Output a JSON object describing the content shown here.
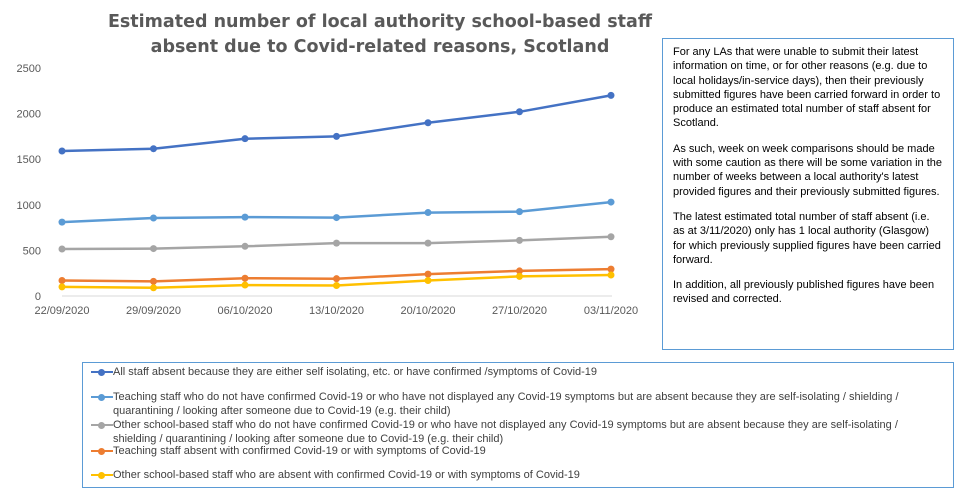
{
  "chart_data": {
    "type": "line",
    "title": "Estimated number of local authority school-based staff absent due to Covid-related reasons, Scotland",
    "categories": [
      "22/09/2020",
      "29/09/2020",
      "06/10/2020",
      "13/10/2020",
      "20/10/2020",
      "27/10/2020",
      "03/11/2020"
    ],
    "y_ticks": [
      "0",
      "500",
      "1000",
      "1500",
      "2000",
      "2500"
    ],
    "ylim": [
      0,
      2500
    ],
    "grid": false,
    "legend_position": "bottom",
    "series": [
      {
        "name": "All staff absent because they are either self isolating, etc. or have confirmed /symptoms of Covid-19",
        "color": "#4472c4",
        "values": [
          1590,
          1615,
          1725,
          1750,
          1900,
          2020,
          2200
        ]
      },
      {
        "name": "Teaching staff who do not have confirmed Covid-19 or who have not displayed any Covid-19 symptoms but are absent because they are self-isolating / shielding / quarantining / looking after someone due to Covid-19 (e.g. their child)",
        "color": "#5b9bd5",
        "values": [
          810,
          855,
          865,
          860,
          915,
          925,
          1030
        ]
      },
      {
        "name": "Other school-based staff who do not have confirmed Covid-19 or who have not displayed any Covid-19 symptoms but are absent because they are self-isolating / shielding / quarantining / looking after someone due to Covid-19 (e.g. their child)",
        "color": "#a5a5a5",
        "values": [
          515,
          520,
          545,
          580,
          580,
          610,
          650
        ]
      },
      {
        "name": "Teaching staff absent with confirmed Covid-19 or with symptoms of Covid-19",
        "color": "#ed7d31",
        "values": [
          170,
          160,
          195,
          190,
          240,
          275,
          295
        ]
      },
      {
        "name": "Other school-based staff who are absent with confirmed Covid-19 or with symptoms of Covid-19",
        "color": "#ffc000",
        "values": [
          100,
          90,
          120,
          115,
          170,
          215,
          230
        ]
      }
    ]
  },
  "note": {
    "paragraphs": [
      "For any LAs that were unable to submit their latest information on time, or for other reasons (e.g. due to local holidays/in-service days), then their previously submitted figures have been carried forward in order to produce an estimated total number of staff absent for Scotland.",
      "As such, week on week comparisons should be made with some caution as there will be some variation in the number of weeks between a local authority's latest provided figures and their previously submitted figures.",
      "The latest estimated total number of staff absent (i.e. as at 3/11/2020) only has 1 local authority (Glasgow) for which previously supplied figures have been carried forward.",
      "In addition, all previously published figures have been revised and corrected."
    ]
  }
}
